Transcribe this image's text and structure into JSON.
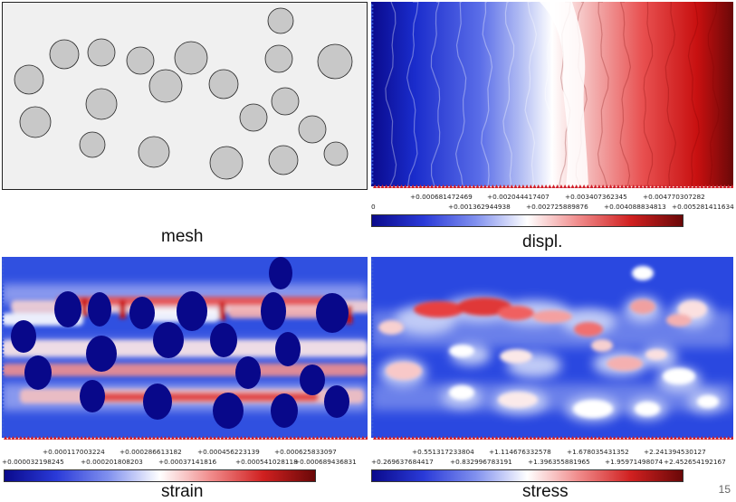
{
  "captions": {
    "mesh": "mesh",
    "displ": "displ.",
    "strain": "strain",
    "stress": "stress"
  },
  "page_number": "15",
  "displ_legend": {
    "row1": [
      "+0.000681472469",
      "+0.002044417407",
      "+0.003407362345",
      "+0.004770307282"
    ],
    "row2": [
      "0",
      "+0.001362944938",
      "+0.002725889876",
      "+0.004088834813",
      "+0.005281411634"
    ]
  },
  "strain_legend": {
    "row1": [
      "+0.000117003224",
      "+0.000286613182",
      "+0.000456223139",
      "+0.000625833097"
    ],
    "row2": [
      "+0.000032198245",
      "+0.000201808203",
      "+0.00037141816",
      "+0.000541028118",
      "+0.000689436831"
    ]
  },
  "stress_legend": {
    "row1": [
      "+0.551317233804",
      "+1.114676332578",
      "+1.678035431352",
      "+2.241394530127"
    ],
    "row2": [
      "+0.269637684417",
      "+0.832996783191",
      "+1.396355881965",
      "+1.95971498074",
      "+2.452654192167"
    ]
  },
  "colors": {
    "mesh_bg": "#f0f0f0",
    "inclusion": "#c8c8c8",
    "deep_blue": "#0a0a8c",
    "white": "#ffffff",
    "deep_red": "#7a0a0a",
    "boundary_blue": "#3a5bd9",
    "boundary_red": "#d0202a"
  }
}
